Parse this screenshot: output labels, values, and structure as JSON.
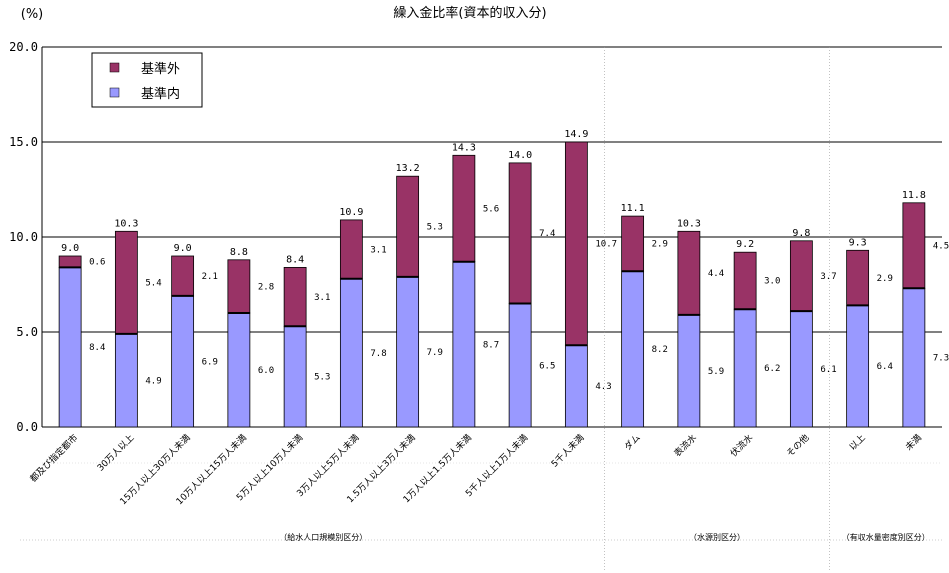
{
  "chart_data": {
    "type": "bar",
    "stacked": true,
    "title": "繰入金比率(資本的収入分)",
    "ylabel": "(%)",
    "ylim": [
      0,
      20
    ],
    "yticks": [
      "0.0",
      "5.0",
      "10.0",
      "15.0",
      "20.0"
    ],
    "grid": true,
    "legend_position": "top-left",
    "categories": [
      "都及び指定都市",
      "30万人以上",
      "15万人以上30万人未満",
      "10万人以上15万人未満",
      "5万人以上10万人未満",
      "3万人以上5万人未満",
      "1.5万人以上3万人未満",
      "1万人以上1.5万人未満",
      "5千人以上1万人未満",
      "5千人未満",
      "ダム",
      "表流水",
      "伏流水",
      "その他",
      "以上",
      "未満"
    ],
    "series": [
      {
        "name": "基準内",
        "color": "#9999ff",
        "values": [
          8.4,
          4.9,
          6.9,
          6.0,
          5.3,
          7.8,
          7.9,
          8.7,
          6.5,
          4.3,
          8.2,
          5.9,
          6.2,
          6.1,
          6.4,
          7.3
        ]
      },
      {
        "name": "基準外",
        "color": "#993366",
        "values": [
          0.6,
          5.4,
          2.1,
          2.8,
          3.1,
          3.1,
          5.3,
          5.6,
          7.4,
          10.7,
          2.9,
          4.4,
          3.0,
          3.7,
          2.9,
          4.5
        ]
      }
    ],
    "totals": [
      9.0,
      10.3,
      9.0,
      8.8,
      8.4,
      10.9,
      13.2,
      14.3,
      14.0,
      14.9,
      11.1,
      10.3,
      9.2,
      9.8,
      9.3,
      11.8
    ],
    "group_labels": [
      "（給水人口規模別区分）",
      "（水源別区分）",
      "（有収水量密度別区分）"
    ]
  }
}
